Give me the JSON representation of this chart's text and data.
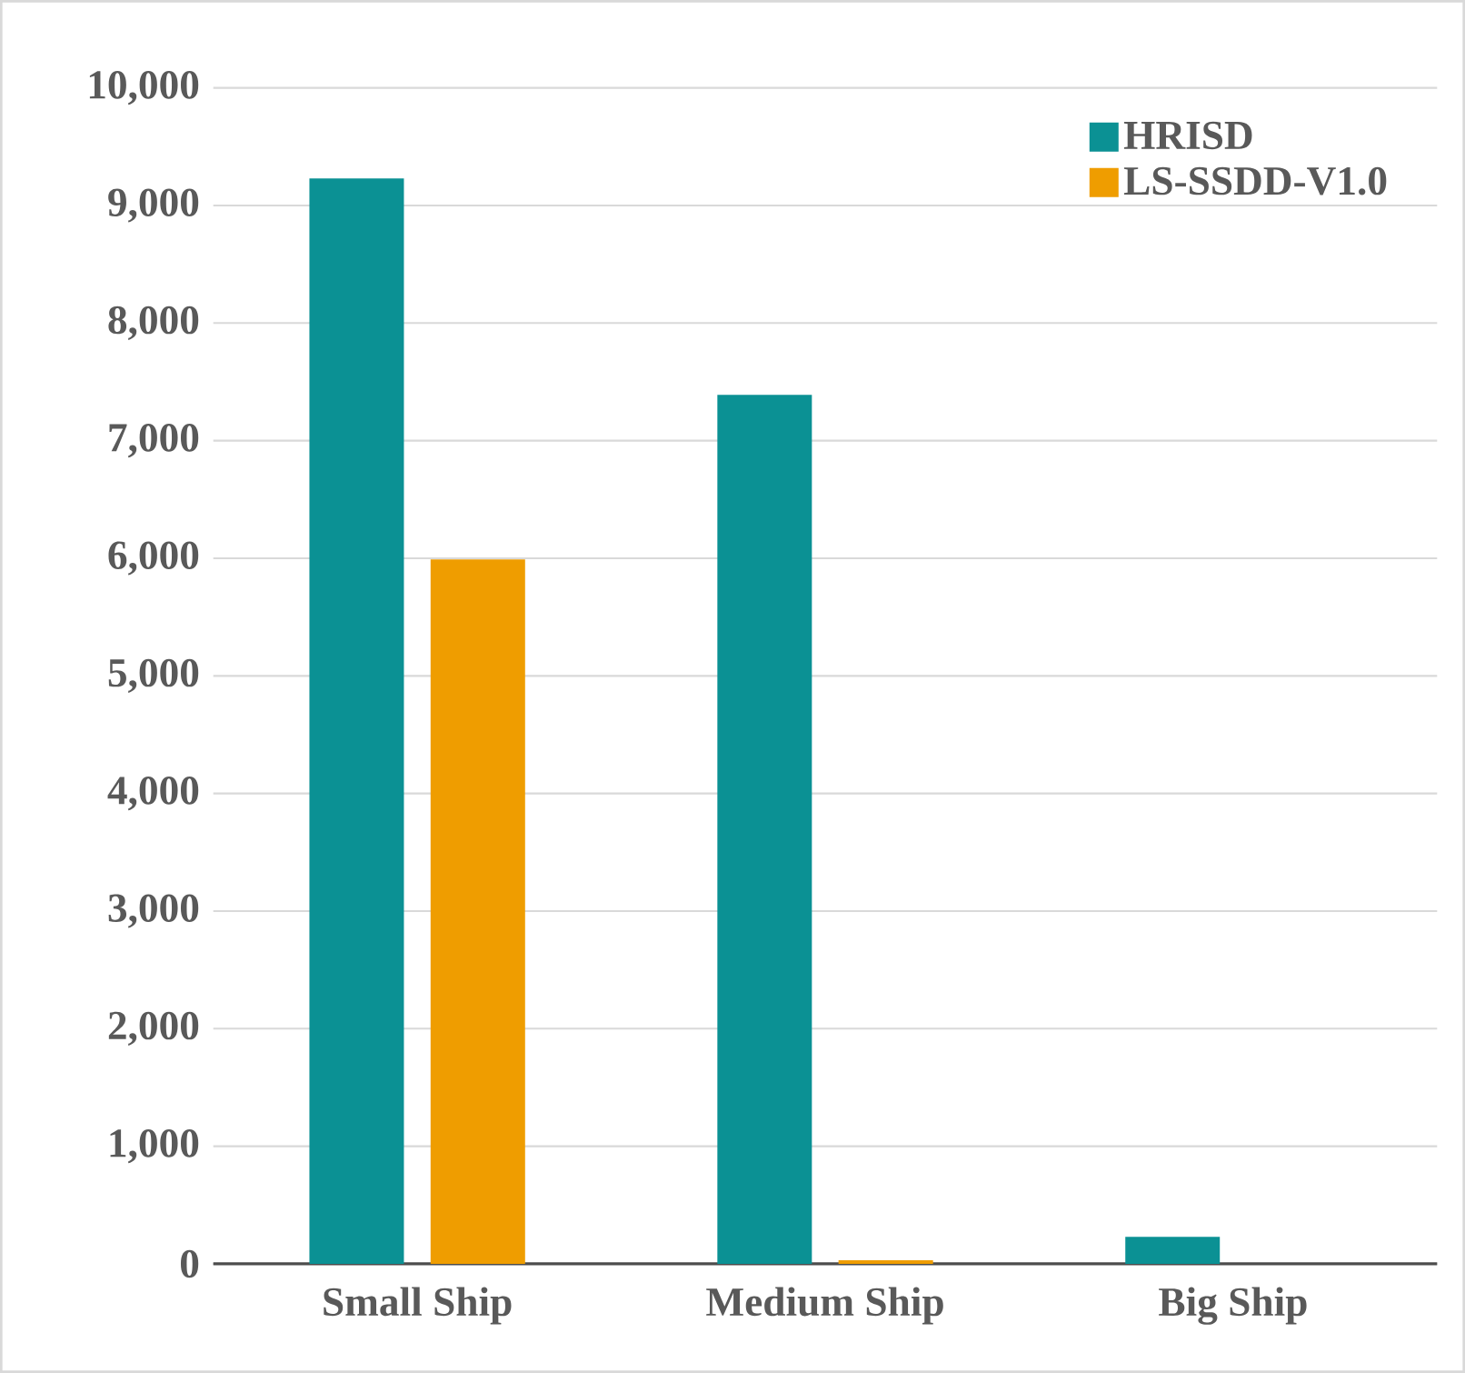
{
  "chart_data": {
    "type": "bar",
    "categories": [
      "Small Ship",
      "Medium Ship",
      "Big Ship"
    ],
    "series": [
      {
        "name": "HRISD",
        "color": "#0b9194",
        "values": [
          9230,
          7390,
          230
        ]
      },
      {
        "name": "LS-SSDD-V1.0",
        "color": "#ef9d00",
        "values": [
          5990,
          30,
          null
        ]
      }
    ],
    "ylim": [
      0,
      10000
    ],
    "yticks": [
      {
        "value": 0,
        "label": "0"
      },
      {
        "value": 1000,
        "label": "1,000"
      },
      {
        "value": 2000,
        "label": "2,000"
      },
      {
        "value": 3000,
        "label": "3,000"
      },
      {
        "value": 4000,
        "label": "4,000"
      },
      {
        "value": 5000,
        "label": "5,000"
      },
      {
        "value": 6000,
        "label": "6,000"
      },
      {
        "value": 7000,
        "label": "7,000"
      },
      {
        "value": 8000,
        "label": "8,000"
      },
      {
        "value": 9000,
        "label": "9,000"
      },
      {
        "value": 10000,
        "label": "10,000"
      }
    ],
    "grid": "y",
    "legend": "top right"
  }
}
